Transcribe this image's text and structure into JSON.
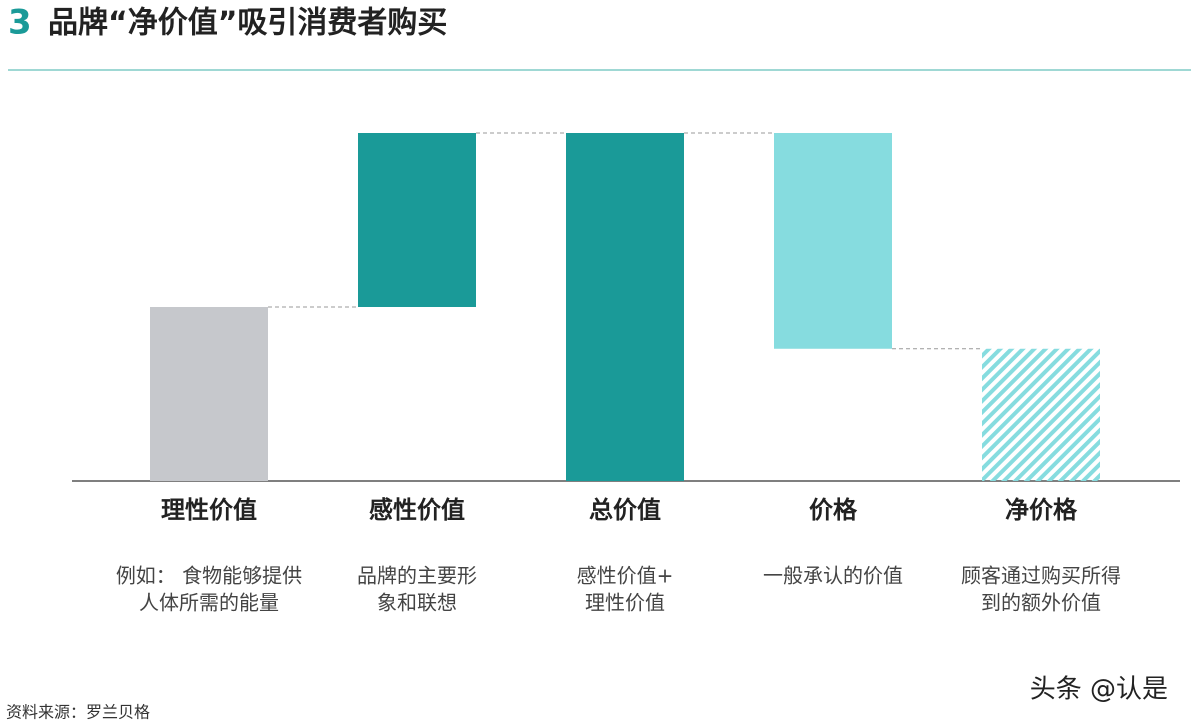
{
  "chart_data": {
    "type": "waterfall",
    "number": "3",
    "title": "品牌“净价值”吸引消费者购买",
    "categories": [
      "理性价值",
      "感性价值",
      "总价值",
      "价格",
      "净价格"
    ],
    "descriptions": [
      [
        "例如：  食物能够提供",
        "人体所需的能量"
      ],
      [
        "品牌的主要形",
        "象和联想"
      ],
      [
        "感性价值+",
        "理性价值"
      ],
      [
        "一般承认的价值"
      ],
      [
        "顾客通过购买所得",
        "到的额外价值"
      ]
    ],
    "values": [
      50,
      50,
      100,
      -62,
      38
    ],
    "totals": [
      false,
      false,
      true,
      false,
      true
    ],
    "colors": [
      "#c6c8cc",
      "#1a9a98",
      "#1a9a98",
      "#86dcdf",
      "#86dcdf"
    ],
    "hatched": [
      false,
      false,
      false,
      false,
      true
    ],
    "ylim": [
      0,
      100
    ],
    "source": "资料来源：罗兰贝格",
    "watermark": "头条 @认是"
  }
}
